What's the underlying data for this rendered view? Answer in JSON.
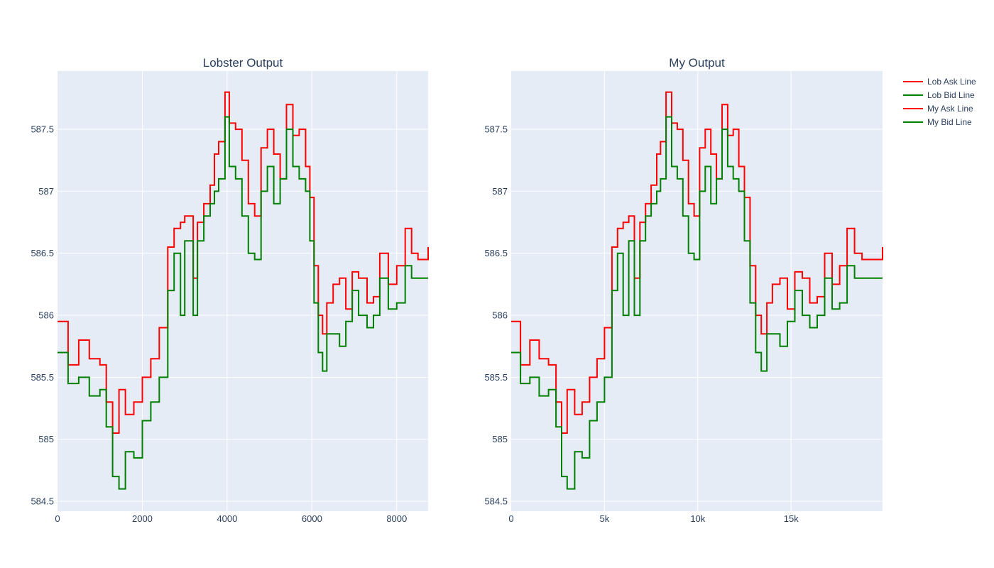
{
  "chart_data": [
    {
      "type": "line",
      "title": "Lobster Output",
      "xlabel": "",
      "ylabel": "",
      "xlim": [
        0,
        8740
      ],
      "ylim": [
        584.42,
        587.97
      ],
      "xticks": [
        0,
        2000,
        4000,
        6000,
        8000
      ],
      "xtick_labels": [
        "0",
        "2000",
        "4000",
        "6000",
        "8000"
      ],
      "yticks": [
        584.5,
        585,
        585.5,
        586,
        586.5,
        587,
        587.5
      ],
      "ytick_labels": [
        "584.5",
        "585",
        "585.5",
        "586",
        "586.5",
        "587",
        "587.5"
      ],
      "grid": true,
      "series": [
        {
          "name": "Lob Ask Line",
          "color": "#ff0000",
          "x": [
            0,
            250,
            500,
            750,
            1000,
            1150,
            1300,
            1450,
            1600,
            1800,
            2000,
            2200,
            2400,
            2600,
            2750,
            2900,
            3000,
            3200,
            3300,
            3450,
            3600,
            3700,
            3800,
            3950,
            4050,
            4200,
            4350,
            4500,
            4650,
            4800,
            4950,
            5100,
            5250,
            5400,
            5550,
            5700,
            5850,
            5950,
            6050,
            6150,
            6250,
            6350,
            6500,
            6650,
            6800,
            6950,
            7100,
            7300,
            7450,
            7600,
            7800,
            8000,
            8200,
            8350,
            8500,
            8740
          ],
          "y": [
            585.95,
            585.6,
            585.8,
            585.65,
            585.6,
            585.3,
            585.05,
            585.4,
            585.2,
            585.3,
            585.5,
            585.65,
            585.9,
            586.55,
            586.7,
            586.75,
            586.8,
            586.3,
            586.75,
            586.9,
            587.05,
            587.3,
            587.4,
            587.8,
            587.55,
            587.5,
            587.25,
            586.9,
            586.8,
            587.35,
            587.5,
            587.3,
            587.1,
            587.7,
            587.45,
            587.5,
            587.2,
            586.95,
            586.4,
            586.0,
            585.85,
            586.1,
            586.25,
            586.3,
            586.05,
            586.35,
            586.3,
            586.1,
            586.15,
            586.5,
            586.25,
            586.4,
            586.7,
            586.5,
            586.45,
            586.55
          ]
        },
        {
          "name": "Lob Bid Line",
          "color": "#008000",
          "x": [
            0,
            250,
            500,
            750,
            1000,
            1150,
            1300,
            1450,
            1600,
            1800,
            2000,
            2200,
            2400,
            2600,
            2750,
            2900,
            3000,
            3200,
            3300,
            3450,
            3600,
            3700,
            3800,
            3950,
            4050,
            4200,
            4350,
            4500,
            4650,
            4800,
            4950,
            5100,
            5250,
            5400,
            5550,
            5700,
            5850,
            5950,
            6050,
            6150,
            6250,
            6350,
            6500,
            6650,
            6800,
            6950,
            7100,
            7300,
            7450,
            7600,
            7800,
            8000,
            8200,
            8350,
            8500,
            8740
          ],
          "y": [
            585.7,
            585.45,
            585.5,
            585.35,
            585.4,
            585.1,
            584.7,
            584.6,
            584.9,
            584.85,
            585.15,
            585.3,
            585.5,
            586.2,
            586.5,
            586.0,
            586.6,
            586.0,
            586.6,
            586.8,
            586.9,
            587.0,
            587.1,
            587.6,
            587.2,
            587.1,
            586.8,
            586.5,
            586.45,
            587.0,
            587.2,
            586.9,
            587.1,
            587.5,
            587.2,
            587.1,
            587.0,
            586.6,
            586.1,
            585.7,
            585.55,
            585.85,
            585.85,
            585.75,
            585.95,
            586.2,
            586.0,
            585.9,
            586.0,
            586.3,
            586.05,
            586.1,
            586.4,
            586.3,
            586.3,
            586.3
          ]
        }
      ]
    },
    {
      "type": "line",
      "title": "My Output",
      "xlabel": "",
      "ylabel": "",
      "xlim": [
        0,
        19900
      ],
      "ylim": [
        584.42,
        587.97
      ],
      "xticks": [
        0,
        5000,
        10000,
        15000
      ],
      "xtick_labels": [
        "0",
        "5k",
        "10k",
        "15k"
      ],
      "yticks": [
        584.5,
        585,
        585.5,
        586,
        586.5,
        587,
        587.5
      ],
      "ytick_labels": [
        "584.5",
        "585",
        "585.5",
        "586",
        "586.5",
        "587",
        "587.5"
      ],
      "grid": true,
      "series": [
        {
          "name": "My Ask Line",
          "color": "#ff0000",
          "x": [
            0,
            500,
            1000,
            1500,
            2000,
            2400,
            2700,
            3000,
            3400,
            3800,
            4200,
            4600,
            5000,
            5400,
            5700,
            6000,
            6300,
            6600,
            6900,
            7200,
            7500,
            7800,
            8000,
            8300,
            8600,
            8900,
            9200,
            9500,
            9800,
            10100,
            10400,
            10700,
            11000,
            11300,
            11600,
            11900,
            12200,
            12500,
            12800,
            13100,
            13400,
            13700,
            14000,
            14400,
            14800,
            15200,
            15600,
            16000,
            16400,
            16800,
            17200,
            17600,
            18000,
            18400,
            18800,
            19900
          ],
          "y": [
            585.95,
            585.6,
            585.8,
            585.65,
            585.6,
            585.3,
            585.05,
            585.4,
            585.2,
            585.3,
            585.5,
            585.65,
            585.9,
            586.55,
            586.7,
            586.75,
            586.8,
            586.3,
            586.75,
            586.9,
            587.05,
            587.3,
            587.4,
            587.8,
            587.55,
            587.5,
            587.25,
            586.9,
            586.8,
            587.35,
            587.5,
            587.3,
            587.1,
            587.7,
            587.45,
            587.5,
            587.2,
            586.95,
            586.4,
            586.0,
            585.85,
            586.1,
            586.25,
            586.3,
            586.05,
            586.35,
            586.3,
            586.1,
            586.15,
            586.5,
            586.25,
            586.4,
            586.7,
            586.5,
            586.45,
            586.55
          ]
        },
        {
          "name": "My Bid Line",
          "color": "#008000",
          "x": [
            0,
            500,
            1000,
            1500,
            2000,
            2400,
            2700,
            3000,
            3400,
            3800,
            4200,
            4600,
            5000,
            5400,
            5700,
            6000,
            6300,
            6600,
            6900,
            7200,
            7500,
            7800,
            8000,
            8300,
            8600,
            8900,
            9200,
            9500,
            9800,
            10100,
            10400,
            10700,
            11000,
            11300,
            11600,
            11900,
            12200,
            12500,
            12800,
            13100,
            13400,
            13700,
            14000,
            14400,
            14800,
            15200,
            15600,
            16000,
            16400,
            16800,
            17200,
            17600,
            18000,
            18400,
            18800,
            19900
          ],
          "y": [
            585.7,
            585.45,
            585.5,
            585.35,
            585.4,
            585.1,
            584.7,
            584.6,
            584.9,
            584.85,
            585.15,
            585.3,
            585.5,
            586.2,
            586.5,
            586.0,
            586.6,
            586.0,
            586.6,
            586.8,
            586.9,
            587.0,
            587.1,
            587.6,
            587.2,
            587.1,
            586.8,
            586.5,
            586.45,
            587.0,
            587.2,
            586.9,
            587.1,
            587.5,
            587.2,
            587.1,
            587.0,
            586.6,
            586.1,
            585.7,
            585.55,
            585.85,
            585.85,
            585.75,
            585.95,
            586.2,
            586.0,
            585.9,
            586.0,
            586.3,
            586.05,
            586.1,
            586.4,
            586.3,
            586.3,
            586.3
          ]
        }
      ]
    }
  ],
  "legend": {
    "placement": "top-right",
    "items": [
      {
        "label": "Lob Ask Line",
        "color": "#ff0000"
      },
      {
        "label": "Lob Bid Line",
        "color": "#008000"
      },
      {
        "label": "My Ask Line",
        "color": "#ff0000"
      },
      {
        "label": "My Bid Line",
        "color": "#008000"
      }
    ]
  },
  "colors": {
    "plot_background": "#e5ecf6",
    "grid": "#ffffff",
    "text": "#2a3f5f"
  }
}
